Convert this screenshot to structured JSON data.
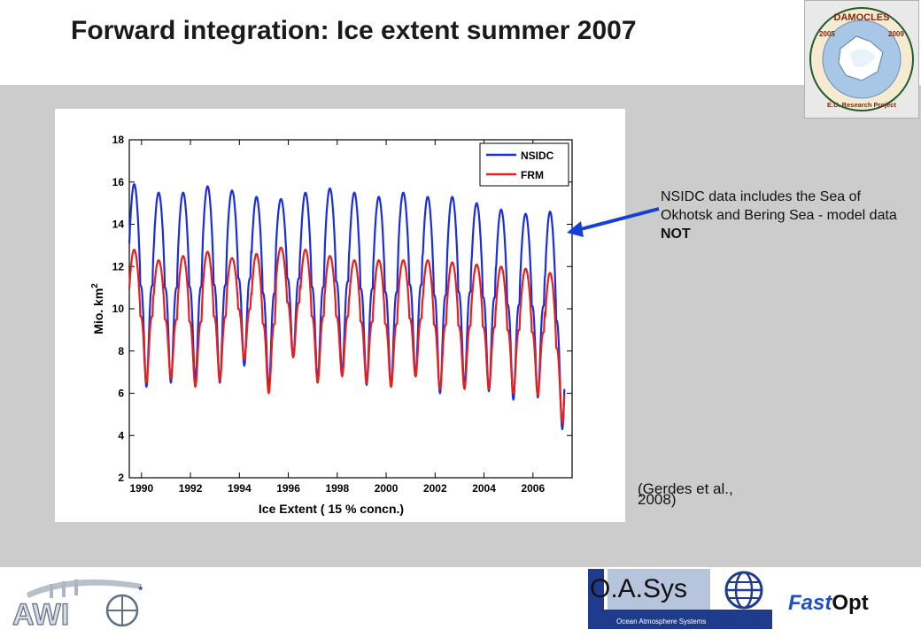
{
  "slide": {
    "title": "Forward integration: Ice extent summer 2007",
    "note": {
      "prefix": "NSIDC data includes the Sea of Okhotsk and Bering Sea - model data ",
      "emphasis": "NOT"
    },
    "citation": {
      "line1": "(Gerdes et al.,",
      "line2": "2008)"
    },
    "logos": {
      "damocles": {
        "brand": "DAMOCLES",
        "year_left": "2005",
        "year_right": "2009",
        "subtitle": "E.U. Research Project"
      },
      "awi": {
        "text": "AWI"
      },
      "oasys": {
        "text": "O.A.Sys",
        "subtitle": "Ocean Atmosphere Systems"
      },
      "fastopt": {
        "part1": "Fast",
        "part2": "Opt"
      }
    }
  },
  "colors": {
    "nsidc": "#1a2ee0",
    "frm": "#e8201c",
    "arrow": "#1340d8",
    "background_band": "#cccccc"
  },
  "chart_data": {
    "type": "line",
    "xlabel": "Ice Extent ( 15 % concn.)",
    "ylabel": "Mio. km",
    "ylabel_superscript": "2",
    "xlim": [
      1989.5,
      2007.6
    ],
    "ylim": [
      2,
      18
    ],
    "xticks": [
      1990,
      1992,
      1994,
      1996,
      1998,
      2000,
      2002,
      2004,
      2006
    ],
    "yticks": [
      2,
      4,
      6,
      8,
      10,
      12,
      14,
      16,
      18
    ],
    "grid": false,
    "legend_position": "top-right",
    "series": [
      {
        "name": "NSIDC",
        "years": [
          1990,
          1991,
          1992,
          1993,
          1994,
          1995,
          1996,
          1997,
          1998,
          1999,
          2000,
          2001,
          2002,
          2003,
          2004,
          2005,
          2006,
          2007
        ],
        "annual_max": [
          15.9,
          15.5,
          15.5,
          15.8,
          15.6,
          15.3,
          15.2,
          15.5,
          15.7,
          15.5,
          15.3,
          15.5,
          15.3,
          15.3,
          15.0,
          14.7,
          14.5,
          14.6
        ],
        "annual_min": [
          6.3,
          6.5,
          6.6,
          6.5,
          7.3,
          6.2,
          7.7,
          6.6,
          6.9,
          6.4,
          6.3,
          6.8,
          6.0,
          6.3,
          6.1,
          5.7,
          5.8,
          4.3
        ]
      },
      {
        "name": "FRM",
        "years": [
          1990,
          1991,
          1992,
          1993,
          1994,
          1995,
          1996,
          1997,
          1998,
          1999,
          2000,
          2001,
          2002,
          2003,
          2004,
          2005,
          2006,
          2007
        ],
        "annual_max": [
          12.8,
          12.3,
          12.5,
          12.7,
          12.4,
          12.6,
          12.9,
          12.8,
          12.5,
          12.3,
          12.3,
          12.3,
          12.3,
          12.2,
          12.1,
          12.0,
          11.9,
          11.7
        ],
        "annual_min": [
          6.5,
          6.7,
          6.3,
          6.6,
          7.6,
          6.0,
          7.7,
          6.5,
          6.8,
          6.5,
          6.3,
          6.8,
          6.2,
          6.2,
          6.2,
          6.0,
          5.9,
          4.6
        ]
      }
    ]
  }
}
